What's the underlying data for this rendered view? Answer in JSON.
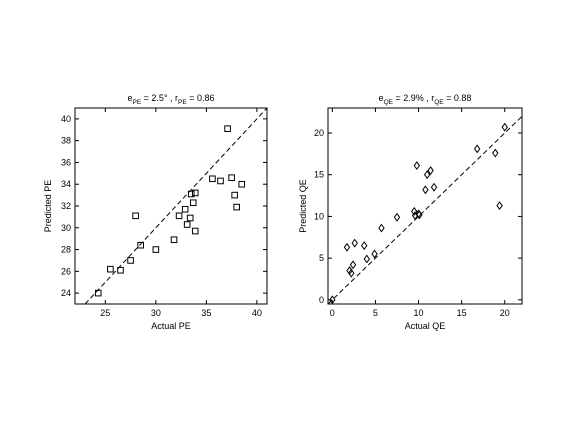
{
  "chart_data": [
    {
      "type": "scatter",
      "marker": "square",
      "title": {
        "e_var": "e",
        "e_sub": "PE",
        "e_val": " = 2.5° , ",
        "r_var": "r",
        "r_sub": "PE",
        "r_val": " = 0.86"
      },
      "xlabel": "Actual PE",
      "ylabel": "Predicted PE",
      "xlim": [
        22,
        41
      ],
      "ylim": [
        23,
        41
      ],
      "xticks": [
        25,
        30,
        35,
        40
      ],
      "yticks": [
        24,
        26,
        28,
        30,
        32,
        34,
        36,
        38,
        40
      ],
      "reference_line": "y = x (dashed)",
      "points": [
        [
          24.3,
          24.0
        ],
        [
          25.5,
          26.2
        ],
        [
          26.5,
          26.1
        ],
        [
          27.5,
          27.0
        ],
        [
          28.0,
          31.1
        ],
        [
          28.5,
          28.4
        ],
        [
          30.0,
          28.0
        ],
        [
          31.8,
          28.9
        ],
        [
          32.3,
          31.1
        ],
        [
          32.9,
          31.7
        ],
        [
          33.1,
          30.3
        ],
        [
          33.4,
          30.9
        ],
        [
          33.5,
          33.1
        ],
        [
          33.7,
          32.3
        ],
        [
          33.9,
          33.2
        ],
        [
          33.9,
          29.7
        ],
        [
          35.6,
          34.5
        ],
        [
          36.4,
          34.3
        ],
        [
          37.1,
          39.1
        ],
        [
          37.5,
          34.6
        ],
        [
          37.8,
          33.0
        ],
        [
          38.0,
          31.9
        ],
        [
          38.5,
          34.0
        ]
      ]
    },
    {
      "type": "scatter",
      "marker": "diamond",
      "title": {
        "e_var": "e",
        "e_sub": "QE",
        "e_val": " = 2.9% , ",
        "r_var": "r",
        "r_sub": "QE",
        "r_val": " = 0.88"
      },
      "xlabel": "Actual QE",
      "ylabel": "Predicted QE",
      "xlim": [
        -0.5,
        22
      ],
      "ylim": [
        -0.5,
        23
      ],
      "xticks": [
        0,
        5,
        10,
        15,
        20
      ],
      "yticks": [
        0,
        5,
        10,
        15,
        20
      ],
      "reference_line": "y = x (dashed)",
      "points": [
        [
          0.0,
          0.0
        ],
        [
          1.7,
          6.3
        ],
        [
          2.0,
          3.5
        ],
        [
          2.2,
          3.2
        ],
        [
          2.4,
          4.2
        ],
        [
          2.6,
          6.8
        ],
        [
          3.7,
          6.5
        ],
        [
          4.0,
          4.9
        ],
        [
          4.9,
          5.5
        ],
        [
          5.7,
          8.6
        ],
        [
          7.5,
          9.9
        ],
        [
          9.5,
          10.6
        ],
        [
          9.6,
          10.1
        ],
        [
          9.8,
          16.1
        ],
        [
          10.0,
          10.3
        ],
        [
          10.1,
          10.2
        ],
        [
          10.8,
          13.2
        ],
        [
          11.0,
          15.0
        ],
        [
          11.4,
          15.5
        ],
        [
          11.8,
          13.5
        ],
        [
          16.8,
          18.1
        ],
        [
          18.9,
          17.6
        ],
        [
          19.4,
          11.3
        ],
        [
          20.0,
          20.7
        ]
      ]
    }
  ]
}
